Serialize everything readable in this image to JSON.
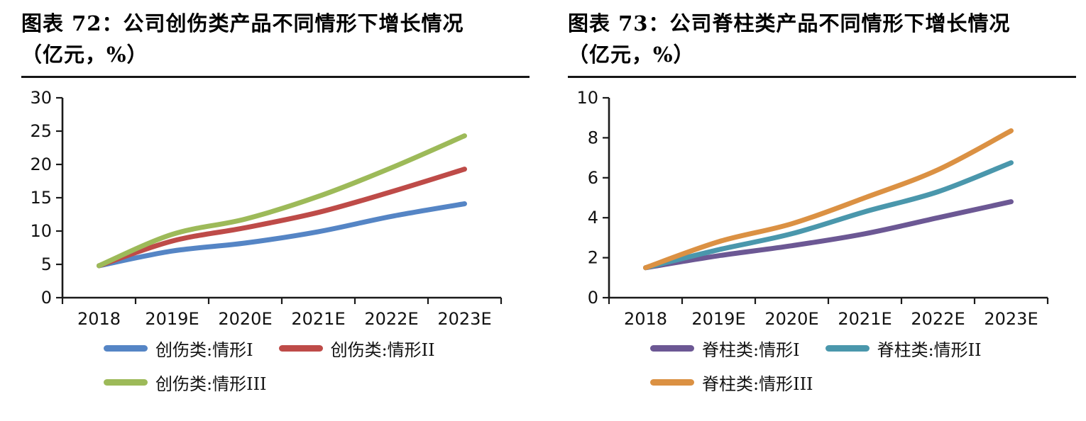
{
  "chart_data": [
    {
      "type": "line",
      "title": "图表 72：公司创伤类产品不同情形下增长情况（亿元，%）",
      "categories": [
        "2018",
        "2019E",
        "2020E",
        "2021E",
        "2022E",
        "2023E"
      ],
      "series": [
        {
          "name": "创伤类:情形I",
          "color": "#5585C5",
          "values": [
            4.8,
            7.0,
            8.2,
            9.9,
            12.2,
            14.1
          ]
        },
        {
          "name": "创伤类:情形II",
          "color": "#BE4B48",
          "values": [
            4.8,
            8.5,
            10.5,
            12.8,
            15.9,
            19.3
          ]
        },
        {
          "name": "创伤类:情形III",
          "color": "#9DBA59",
          "values": [
            4.8,
            9.5,
            11.8,
            15.2,
            19.5,
            24.3
          ]
        }
      ],
      "xlabel": "",
      "ylabel": "",
      "ylim": [
        0,
        30
      ],
      "yticks": [
        0,
        5,
        10,
        15,
        20,
        25,
        30
      ],
      "grid": false,
      "legend_position": "bottom"
    },
    {
      "type": "line",
      "title": "图表 73：公司脊柱类产品不同情形下增长情况（亿元，%）",
      "categories": [
        "2018",
        "2019E",
        "2020E",
        "2021E",
        "2022E",
        "2023E"
      ],
      "series": [
        {
          "name": "脊柱类:情形I",
          "color": "#6C5894",
          "values": [
            1.5,
            2.1,
            2.6,
            3.2,
            4.0,
            4.8
          ]
        },
        {
          "name": "脊柱类:情形II",
          "color": "#4A97AC",
          "values": [
            1.5,
            2.4,
            3.2,
            4.3,
            5.3,
            6.75
          ]
        },
        {
          "name": "脊柱类:情形III",
          "color": "#DB9143",
          "values": [
            1.5,
            2.8,
            3.7,
            5.0,
            6.4,
            8.35
          ]
        }
      ],
      "xlabel": "",
      "ylabel": "",
      "ylim": [
        0,
        10
      ],
      "yticks": [
        0,
        2,
        4,
        6,
        8,
        10
      ],
      "grid": false,
      "legend_position": "bottom"
    }
  ]
}
